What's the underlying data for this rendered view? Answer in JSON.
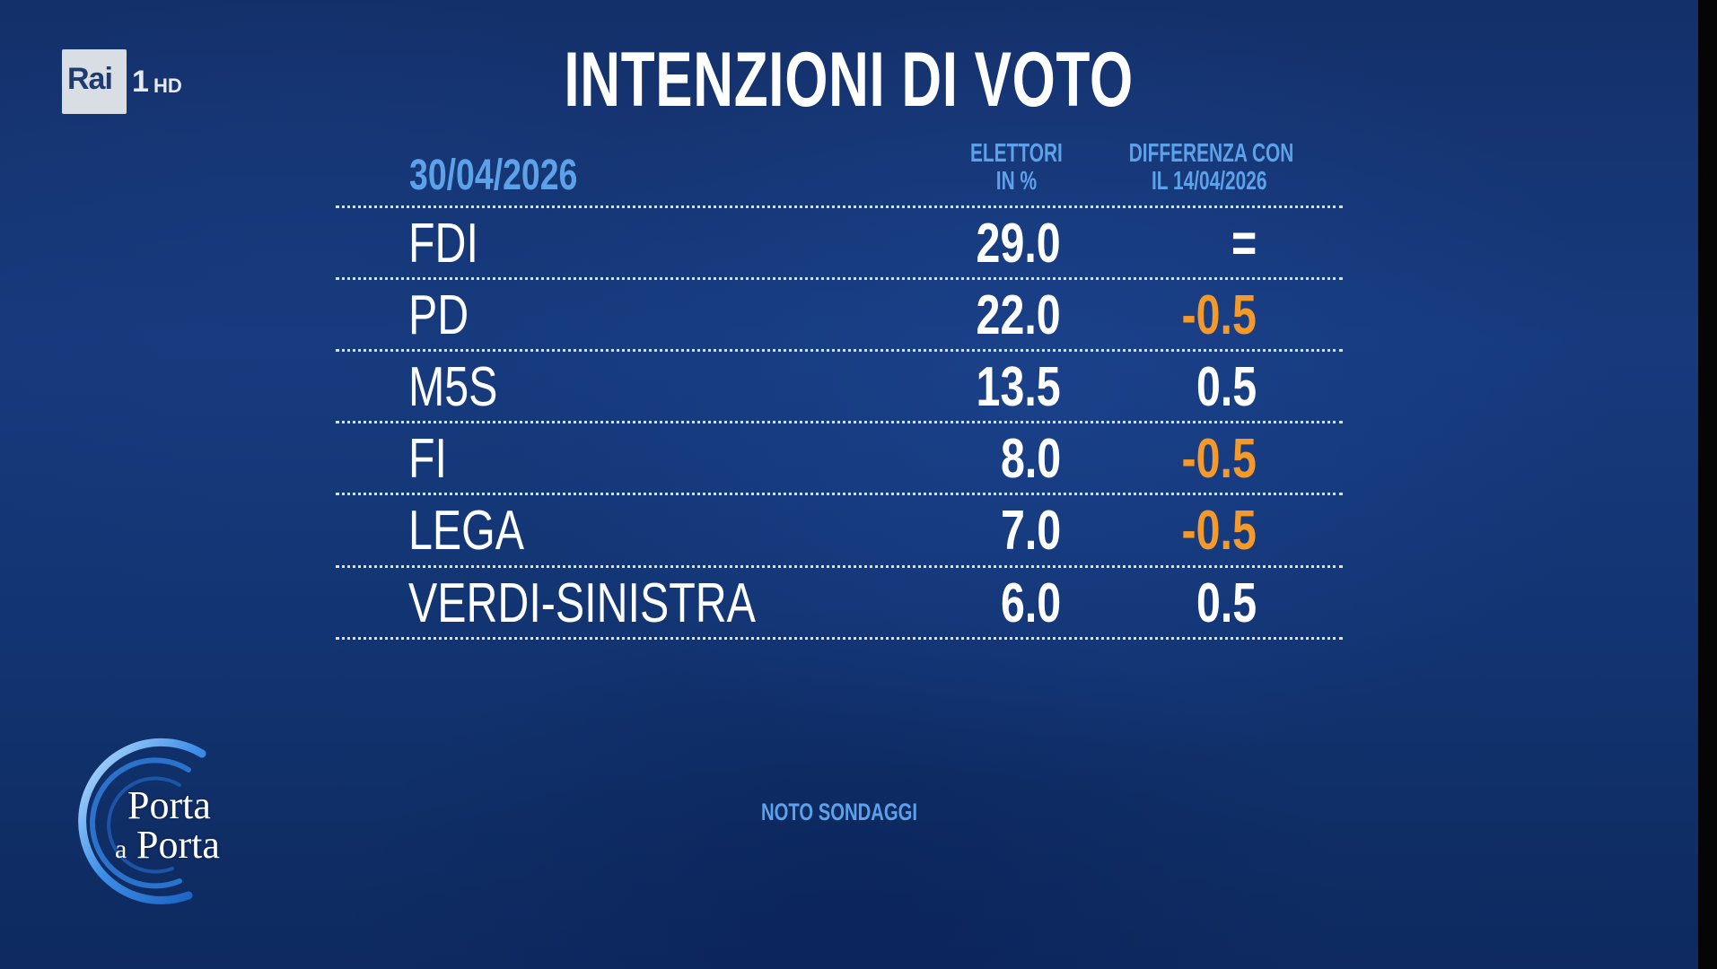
{
  "broadcaster": {
    "logo_text": "Rai",
    "channel": "1",
    "quality": "HD"
  },
  "show_logo": {
    "line1": "Porta",
    "line2_small": "a",
    "line2": "Porta"
  },
  "title": "INTENZIONI DI VOTO",
  "date": "30/04/2026",
  "columns": {
    "electors_line1": "ELETTORI",
    "electors_line2": "IN %",
    "diff_line1": "DIFFERENZA CON",
    "diff_line2": "IL 14/04/2026"
  },
  "rows": [
    {
      "party": "FDI",
      "value": "29.0",
      "diff": "="
    },
    {
      "party": "PD",
      "value": "22.0",
      "diff": "-0.5"
    },
    {
      "party": "M5S",
      "value": "13.5",
      "diff": "0.5"
    },
    {
      "party": "FI",
      "value": "8.0",
      "diff": "-0.5"
    },
    {
      "party": "LEGA",
      "value": "7.0",
      "diff": "-0.5"
    },
    {
      "party": "VERDI-SINISTRA",
      "value": "6.0",
      "diff": "0.5"
    }
  ],
  "source": "NOTO SONDAGGI",
  "colors": {
    "background": "#163a7c",
    "header_blue": "#5da2e8",
    "negative": "#f39a2a",
    "text": "#ffffff"
  },
  "chart_data": {
    "type": "table",
    "title": "INTENZIONI DI VOTO",
    "subtitle": "30/04/2026",
    "columns": [
      "ELETTORI IN %",
      "DIFFERENZA CON IL 14/04/2026"
    ],
    "categories": [
      "FDI",
      "PD",
      "M5S",
      "FI",
      "LEGA",
      "VERDI-SINISTRA"
    ],
    "series": [
      {
        "name": "ELETTORI IN %",
        "values": [
          29.0,
          22.0,
          13.5,
          8.0,
          7.0,
          6.0
        ]
      },
      {
        "name": "DIFFERENZA CON IL 14/04/2026",
        "values": [
          0,
          -0.5,
          0.5,
          -0.5,
          -0.5,
          0.5
        ]
      }
    ],
    "source": "NOTO SONDAGGI"
  }
}
